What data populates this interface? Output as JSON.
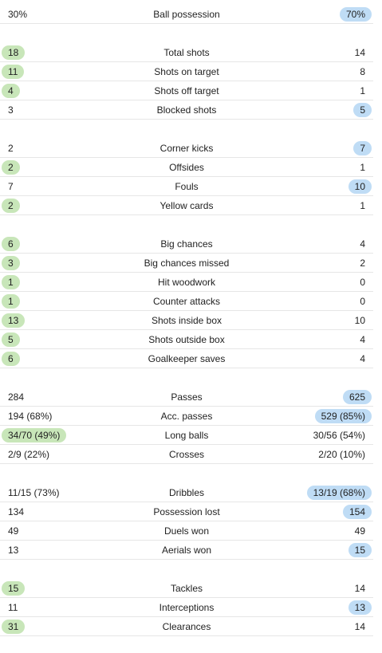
{
  "groups": [
    {
      "rows": [
        {
          "label": "Ball possession",
          "home": "30%",
          "away": "70%",
          "winner": "away"
        }
      ]
    },
    {
      "rows": [
        {
          "label": "Total shots",
          "home": "18",
          "away": "14",
          "winner": "home"
        },
        {
          "label": "Shots on target",
          "home": "11",
          "away": "8",
          "winner": "home"
        },
        {
          "label": "Shots off target",
          "home": "4",
          "away": "1",
          "winner": "home"
        },
        {
          "label": "Blocked shots",
          "home": "3",
          "away": "5",
          "winner": "away"
        }
      ]
    },
    {
      "rows": [
        {
          "label": "Corner kicks",
          "home": "2",
          "away": "7",
          "winner": "away"
        },
        {
          "label": "Offsides",
          "home": "2",
          "away": "1",
          "winner": "home"
        },
        {
          "label": "Fouls",
          "home": "7",
          "away": "10",
          "winner": "away"
        },
        {
          "label": "Yellow cards",
          "home": "2",
          "away": "1",
          "winner": "home"
        }
      ]
    },
    {
      "rows": [
        {
          "label": "Big chances",
          "home": "6",
          "away": "4",
          "winner": "home"
        },
        {
          "label": "Big chances missed",
          "home": "3",
          "away": "2",
          "winner": "home"
        },
        {
          "label": "Hit woodwork",
          "home": "1",
          "away": "0",
          "winner": "home"
        },
        {
          "label": "Counter attacks",
          "home": "1",
          "away": "0",
          "winner": "home"
        },
        {
          "label": "Shots inside box",
          "home": "13",
          "away": "10",
          "winner": "home"
        },
        {
          "label": "Shots outside box",
          "home": "5",
          "away": "4",
          "winner": "home"
        },
        {
          "label": "Goalkeeper saves",
          "home": "6",
          "away": "4",
          "winner": "home"
        }
      ]
    },
    {
      "rows": [
        {
          "label": "Passes",
          "home": "284",
          "away": "625",
          "winner": "away"
        },
        {
          "label": "Acc. passes",
          "home": "194 (68%)",
          "away": "529 (85%)",
          "winner": "away"
        },
        {
          "label": "Long balls",
          "home": "34/70 (49%)",
          "away": "30/56 (54%)",
          "winner": "home"
        },
        {
          "label": "Crosses",
          "home": "2/9 (22%)",
          "away": "2/20 (10%)",
          "winner": "none"
        }
      ]
    },
    {
      "rows": [
        {
          "label": "Dribbles",
          "home": "11/15 (73%)",
          "away": "13/19 (68%)",
          "winner": "away"
        },
        {
          "label": "Possession lost",
          "home": "134",
          "away": "154",
          "winner": "away"
        },
        {
          "label": "Duels won",
          "home": "49",
          "away": "49",
          "winner": "none"
        },
        {
          "label": "Aerials won",
          "home": "13",
          "away": "15",
          "winner": "away"
        }
      ]
    },
    {
      "rows": [
        {
          "label": "Tackles",
          "home": "15",
          "away": "14",
          "winner": "home"
        },
        {
          "label": "Interceptions",
          "home": "11",
          "away": "13",
          "winner": "away"
        },
        {
          "label": "Clearances",
          "home": "31",
          "away": "14",
          "winner": "home"
        }
      ]
    }
  ],
  "colors": {
    "home_highlight": "#c8e6b9",
    "away_highlight": "#bfdcf5",
    "divider": "#e6e6e6"
  }
}
